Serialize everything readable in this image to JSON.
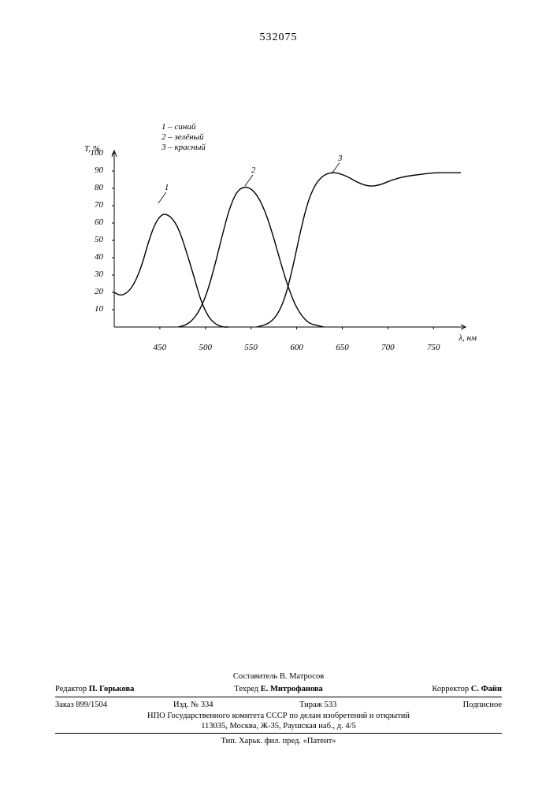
{
  "header": {
    "number": "532075"
  },
  "chart": {
    "type": "line",
    "y_label": "T, %",
    "x_label": "λ, нм",
    "xlim": [
      400,
      780
    ],
    "ylim": [
      0,
      100
    ],
    "yticks": [
      10,
      20,
      30,
      40,
      50,
      60,
      70,
      80,
      90,
      100
    ],
    "xticks": [
      450,
      500,
      550,
      600,
      650,
      700,
      750
    ],
    "background_color": "#ffffff",
    "axis_color": "#000000",
    "line_color": "#000000",
    "line_width": 1.4,
    "tick_fontsize": 11,
    "label_fontsize": 11,
    "font_style": "italic",
    "legend": {
      "items": [
        {
          "num": "1",
          "text": "синий"
        },
        {
          "num": "2",
          "text": "зелёный"
        },
        {
          "num": "3",
          "text": "красный"
        }
      ]
    },
    "curve_labels": [
      {
        "text": "1",
        "x": 450,
        "y": 75
      },
      {
        "text": "2",
        "x": 545,
        "y": 85
      },
      {
        "text": "3",
        "x": 640,
        "y": 92
      }
    ],
    "series": [
      {
        "name": "1-blue",
        "points": [
          [
            400,
            20
          ],
          [
            407,
            18
          ],
          [
            415,
            20
          ],
          [
            422,
            25
          ],
          [
            430,
            35
          ],
          [
            438,
            50
          ],
          [
            445,
            60
          ],
          [
            452,
            65
          ],
          [
            458,
            65
          ],
          [
            465,
            62
          ],
          [
            472,
            55
          ],
          [
            480,
            42
          ],
          [
            488,
            28
          ],
          [
            495,
            15
          ],
          [
            503,
            6
          ],
          [
            510,
            2
          ],
          [
            518,
            0
          ],
          [
            525,
            0
          ]
        ]
      },
      {
        "name": "2-green",
        "points": [
          [
            470,
            0
          ],
          [
            478,
            1
          ],
          [
            486,
            4
          ],
          [
            494,
            10
          ],
          [
            502,
            20
          ],
          [
            510,
            35
          ],
          [
            518,
            52
          ],
          [
            526,
            68
          ],
          [
            534,
            78
          ],
          [
            542,
            81
          ],
          [
            550,
            80
          ],
          [
            558,
            75
          ],
          [
            566,
            66
          ],
          [
            574,
            53
          ],
          [
            582,
            38
          ],
          [
            590,
            24
          ],
          [
            598,
            13
          ],
          [
            606,
            6
          ],
          [
            614,
            2
          ],
          [
            622,
            1
          ],
          [
            630,
            0
          ]
        ]
      },
      {
        "name": "3-red",
        "points": [
          [
            556,
            0
          ],
          [
            564,
            1
          ],
          [
            572,
            3
          ],
          [
            580,
            8
          ],
          [
            588,
            18
          ],
          [
            596,
            35
          ],
          [
            604,
            55
          ],
          [
            612,
            72
          ],
          [
            620,
            82
          ],
          [
            628,
            87
          ],
          [
            636,
            89
          ],
          [
            644,
            89
          ],
          [
            655,
            87
          ],
          [
            668,
            83
          ],
          [
            680,
            81
          ],
          [
            692,
            82
          ],
          [
            705,
            85
          ],
          [
            720,
            87
          ],
          [
            735,
            88
          ],
          [
            750,
            89
          ],
          [
            765,
            89
          ],
          [
            780,
            89
          ]
        ]
      }
    ]
  },
  "footer": {
    "compiler": "Составитель В. Матросов",
    "editor_label": "Редактор",
    "editor": "П. Горькова",
    "tech_editor_label": "Техред",
    "tech_editor": "Е. Митрофанова",
    "corrector_label": "Корректор",
    "corrector": "С. Файн",
    "order": "Заказ 899/1504",
    "edition": "Изд. № 334",
    "circulation": "Тираж 533",
    "subscription": "Подписное",
    "publisher1": "НПО Государственного комитета СССР по делам изобретений и открытий",
    "publisher2": "113035, Москва, Ж-35, Раушская наб., д. 4/5",
    "printer": "Тип. Харьк. фил. пред. «Патент»"
  }
}
